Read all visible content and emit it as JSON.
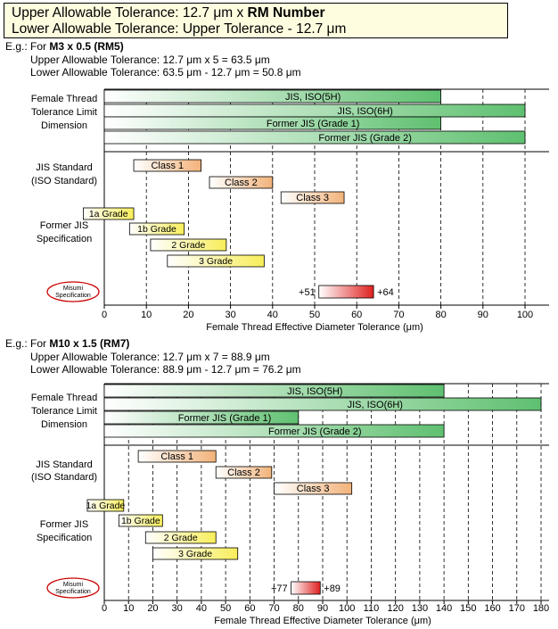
{
  "header": {
    "line1_prefix": "Upper Allowable Tolerance: 12.7 μm x ",
    "line1_bold": "RM Number",
    "line2": "Lower Allowable Tolerance: Upper Tolerance - 12.7 μm"
  },
  "colors": {
    "green_end": "#5fc070",
    "orange_end": "#f2b27a",
    "yellow_end": "#f7ee5a",
    "red_end": "#e02020",
    "oval": "#cc0000"
  },
  "chart_data": [
    {
      "type": "bar",
      "example_prefix": "E.g.: For ",
      "example_bold": "M3 x 0.5 (RM5)",
      "upper_line": "Upper Allowable Tolerance: 12.7 μm x 5 = 63.5 μm",
      "lower_line": "Lower Allowable Tolerance: 63.5 μm - 12.7 μm = 50.8 μm",
      "xlabel": "Female Thread Effective Diameter Tolerance (μm)",
      "xlim": [
        0,
        100
      ],
      "ticks": [
        0,
        10,
        20,
        30,
        40,
        50,
        60,
        70,
        80,
        90,
        100
      ],
      "groups": [
        {
          "label": [
            "Female Thread",
            "Tolerance Limit",
            "Dimension"
          ]
        },
        {
          "label": [
            "JIS Standard",
            "(ISO Standard)"
          ]
        },
        {
          "label": [
            "Former JIS",
            "Specification"
          ]
        }
      ],
      "female_bars": [
        {
          "label": "JIS, ISO(5H)",
          "start": 0,
          "end": 80
        },
        {
          "label": "JIS, ISO(6H)",
          "start": 0,
          "end": 100
        },
        {
          "label": "Former JIS (Grade 1)",
          "start": 0,
          "end": 80
        },
        {
          "label": "Former JIS (Grade 2)",
          "start": 0,
          "end": 100
        }
      ],
      "jis_bars": [
        {
          "label": "Class 1",
          "start": 7,
          "end": 23
        },
        {
          "label": "Class 2",
          "start": 25,
          "end": 40
        },
        {
          "label": "Class 3",
          "start": 42,
          "end": 57
        }
      ],
      "former_bars": [
        {
          "label": "1a Grade",
          "start": -5,
          "end": 7
        },
        {
          "label": "1b Grade",
          "start": 6,
          "end": 19
        },
        {
          "label": "2 Grade",
          "start": 11,
          "end": 29
        },
        {
          "label": "3 Grade",
          "start": 15,
          "end": 38
        }
      ],
      "misumi": {
        "oval_line1": "Misumi",
        "oval_line2": "Specification",
        "lower": 51,
        "upper": 64,
        "lower_label": "+51",
        "upper_label": "+64"
      }
    },
    {
      "type": "bar",
      "example_prefix": "E.g.: For ",
      "example_bold": "M10 x 1.5 (RM7)",
      "upper_line": "Upper Allowable Tolerance: 12.7 μm x 7 = 88.9 μm",
      "lower_line": "Lower Allowable Tolerance: 88.9 μm - 12.7 μm = 76.2 μm",
      "xlabel": "Female Thread Effective Diameter Tolerance (μm)",
      "xlim": [
        0,
        180
      ],
      "ticks": [
        0,
        10,
        20,
        30,
        40,
        50,
        60,
        70,
        80,
        90,
        100,
        110,
        120,
        130,
        140,
        150,
        160,
        170,
        180
      ],
      "groups": [
        {
          "label": [
            "Female Thread",
            "Tolerance Limit",
            "Dimension"
          ]
        },
        {
          "label": [
            "JIS Standard",
            "(ISO Standard)"
          ]
        },
        {
          "label": [
            "Former JIS",
            "Specification"
          ]
        }
      ],
      "female_bars": [
        {
          "label": "JIS, ISO(5H)",
          "start": 0,
          "end": 140
        },
        {
          "label": "JIS, ISO(6H)",
          "start": 0,
          "end": 180
        },
        {
          "label": "Former JIS (Grade 1)",
          "start": 0,
          "end": 80
        },
        {
          "label": "Former JIS (Grade 2)",
          "start": 0,
          "end": 140
        }
      ],
      "jis_bars": [
        {
          "label": "Class 1",
          "start": 14,
          "end": 46
        },
        {
          "label": "Class 2",
          "start": 46,
          "end": 69
        },
        {
          "label": "Class 3",
          "start": 70,
          "end": 102
        }
      ],
      "former_bars": [
        {
          "label": "1a Grade",
          "start": -7,
          "end": 8
        },
        {
          "label": "1b Grade",
          "start": 6,
          "end": 24
        },
        {
          "label": "2 Grade",
          "start": 17,
          "end": 46
        },
        {
          "label": "3 Grade",
          "start": 20,
          "end": 55
        }
      ],
      "misumi": {
        "oval_line1": "Misumi",
        "oval_line2": "Specification",
        "lower": 77,
        "upper": 89,
        "lower_label": "+77",
        "upper_label": "+89"
      }
    }
  ]
}
